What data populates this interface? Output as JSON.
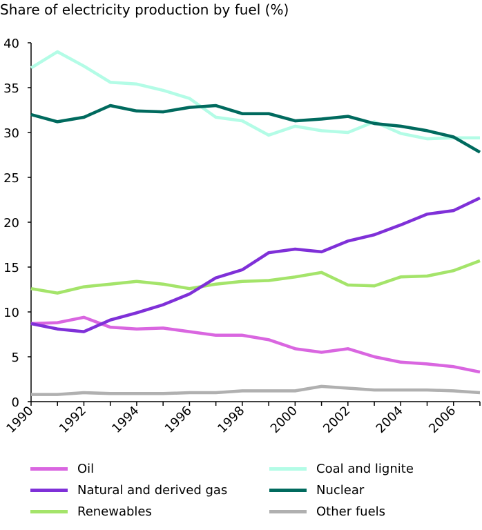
{
  "chart_data": {
    "type": "line",
    "title": "Share of electricity production by fuel (%)",
    "xlabel": "",
    "ylabel": "",
    "x": [
      1990,
      1991,
      1992,
      1993,
      1994,
      1995,
      1996,
      1997,
      1998,
      1999,
      2000,
      2001,
      2002,
      2003,
      2004,
      2005,
      2006,
      2007
    ],
    "x_tick_labels": [
      "1990",
      "1992",
      "1994",
      "1996",
      "1998",
      "2000",
      "2002",
      "2004",
      "2006"
    ],
    "y_tick_labels": [
      "0",
      "5",
      "10",
      "15",
      "20",
      "25",
      "30",
      "35",
      "40"
    ],
    "ylim": [
      0,
      40
    ],
    "xlim": [
      1990,
      2007
    ],
    "grid": false,
    "legend_position": "bottom",
    "series": [
      {
        "name": "Oil",
        "color": "#d966e0",
        "values": [
          8.7,
          8.8,
          9.4,
          8.3,
          8.1,
          8.2,
          7.8,
          7.4,
          7.4,
          6.9,
          5.9,
          5.5,
          5.9,
          5.0,
          4.4,
          4.2,
          3.9,
          3.3
        ]
      },
      {
        "name": "Coal and lignite",
        "color": "#b3fce6",
        "values": [
          37.2,
          39.0,
          37.4,
          35.6,
          35.4,
          34.7,
          33.8,
          31.7,
          31.3,
          29.7,
          30.7,
          30.2,
          30.0,
          31.2,
          29.9,
          29.3,
          29.4,
          29.4
        ]
      },
      {
        "name": "Natural and derived gas",
        "color": "#7f30d8",
        "values": [
          8.7,
          8.1,
          7.8,
          9.1,
          9.9,
          10.8,
          12.0,
          13.8,
          14.7,
          16.6,
          17.0,
          16.7,
          17.9,
          18.6,
          19.7,
          20.9,
          21.3,
          22.7
        ]
      },
      {
        "name": "Nuclear",
        "color": "#006a5e",
        "values": [
          32.0,
          31.2,
          31.7,
          33.0,
          32.4,
          32.3,
          32.8,
          33.0,
          32.1,
          32.1,
          31.3,
          31.5,
          31.8,
          31.0,
          30.7,
          30.2,
          29.5,
          27.8
        ]
      },
      {
        "name": "Renewables",
        "color": "#a4e46a",
        "values": [
          12.6,
          12.1,
          12.8,
          13.1,
          13.4,
          13.1,
          12.6,
          13.1,
          13.4,
          13.5,
          13.9,
          14.4,
          13.0,
          12.9,
          13.9,
          14.0,
          14.6,
          15.7
        ]
      },
      {
        "name": "Other fuels",
        "color": "#b0b0b0",
        "values": [
          0.8,
          0.8,
          1.0,
          0.9,
          0.9,
          0.9,
          1.0,
          1.0,
          1.2,
          1.2,
          1.2,
          1.7,
          1.5,
          1.3,
          1.3,
          1.3,
          1.2,
          1.0
        ]
      }
    ]
  }
}
